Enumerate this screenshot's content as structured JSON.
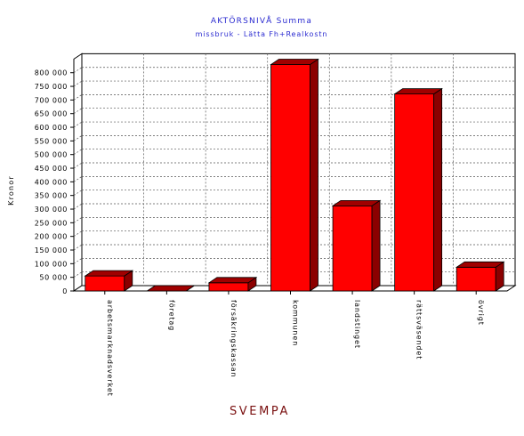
{
  "chart_data": {
    "type": "bar",
    "title": "AKTÖRSNIVÅ Summa",
    "subtitle": "missbruk - Lätta Fh+Realkostn",
    "ylabel": "Kronor",
    "xlabel": "SVEMPA",
    "ylim": [
      0,
      850000
    ],
    "yticks": [
      0,
      50000,
      100000,
      150000,
      200000,
      250000,
      300000,
      350000,
      400000,
      450000,
      500000,
      550000,
      600000,
      650000,
      700000,
      750000,
      800000
    ],
    "ytick_labels": [
      "0",
      "50 000",
      "100 000",
      "150 000",
      "200 000",
      "250 000",
      "300 000",
      "350 000",
      "400 000",
      "450 000",
      "500 000",
      "550 000",
      "600 000",
      "650 000",
      "700 000",
      "750 000",
      "800 000"
    ],
    "categories": [
      "arbetsmarknadsverket",
      "företag",
      "försäkringskassan",
      "kommunen",
      "landstinget",
      "rättsväsendet",
      "övrigt"
    ],
    "values": [
      55000,
      0,
      30000,
      830000,
      312000,
      722000,
      87000
    ],
    "grid": true,
    "legend": false,
    "colors": {
      "bar_front": "#ff0000",
      "bar_side": "#8b0000",
      "bar_top": "#a00000",
      "title": "#2a2ad0",
      "xlabel": "#7a1010"
    }
  }
}
